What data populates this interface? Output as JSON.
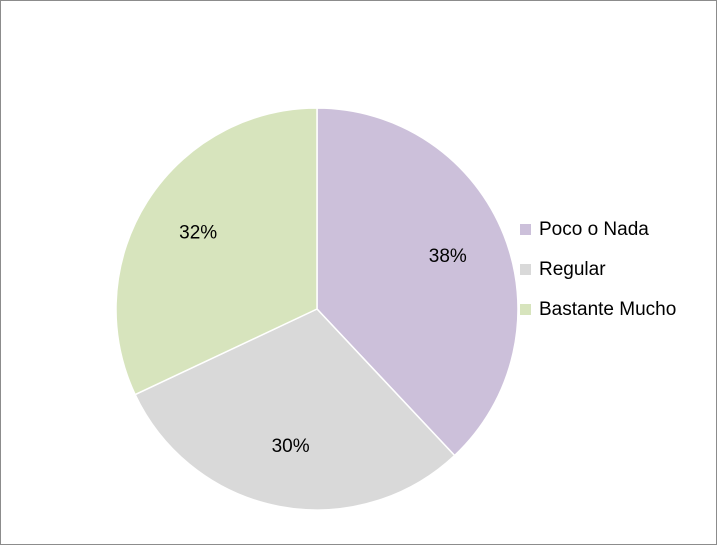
{
  "chart_data": {
    "type": "pie",
    "title": "",
    "categories": [
      "Poco o Nada",
      "Regular",
      "Bastante Mucho"
    ],
    "values": [
      38,
      30,
      32
    ],
    "labels": [
      "38%",
      "30%",
      "32%"
    ],
    "colors": [
      "#ccc0da",
      "#d9d9d9",
      "#d7e4bd"
    ],
    "legend_position": "right",
    "start_angle": "12 o'clock",
    "direction": "clockwise"
  },
  "legend": {
    "items": [
      {
        "label": "Poco o Nada",
        "color": "#ccc0da"
      },
      {
        "label": "Regular",
        "color": "#d9d9d9"
      },
      {
        "label": "Bastante Mucho",
        "color": "#d7e4bd"
      }
    ]
  }
}
